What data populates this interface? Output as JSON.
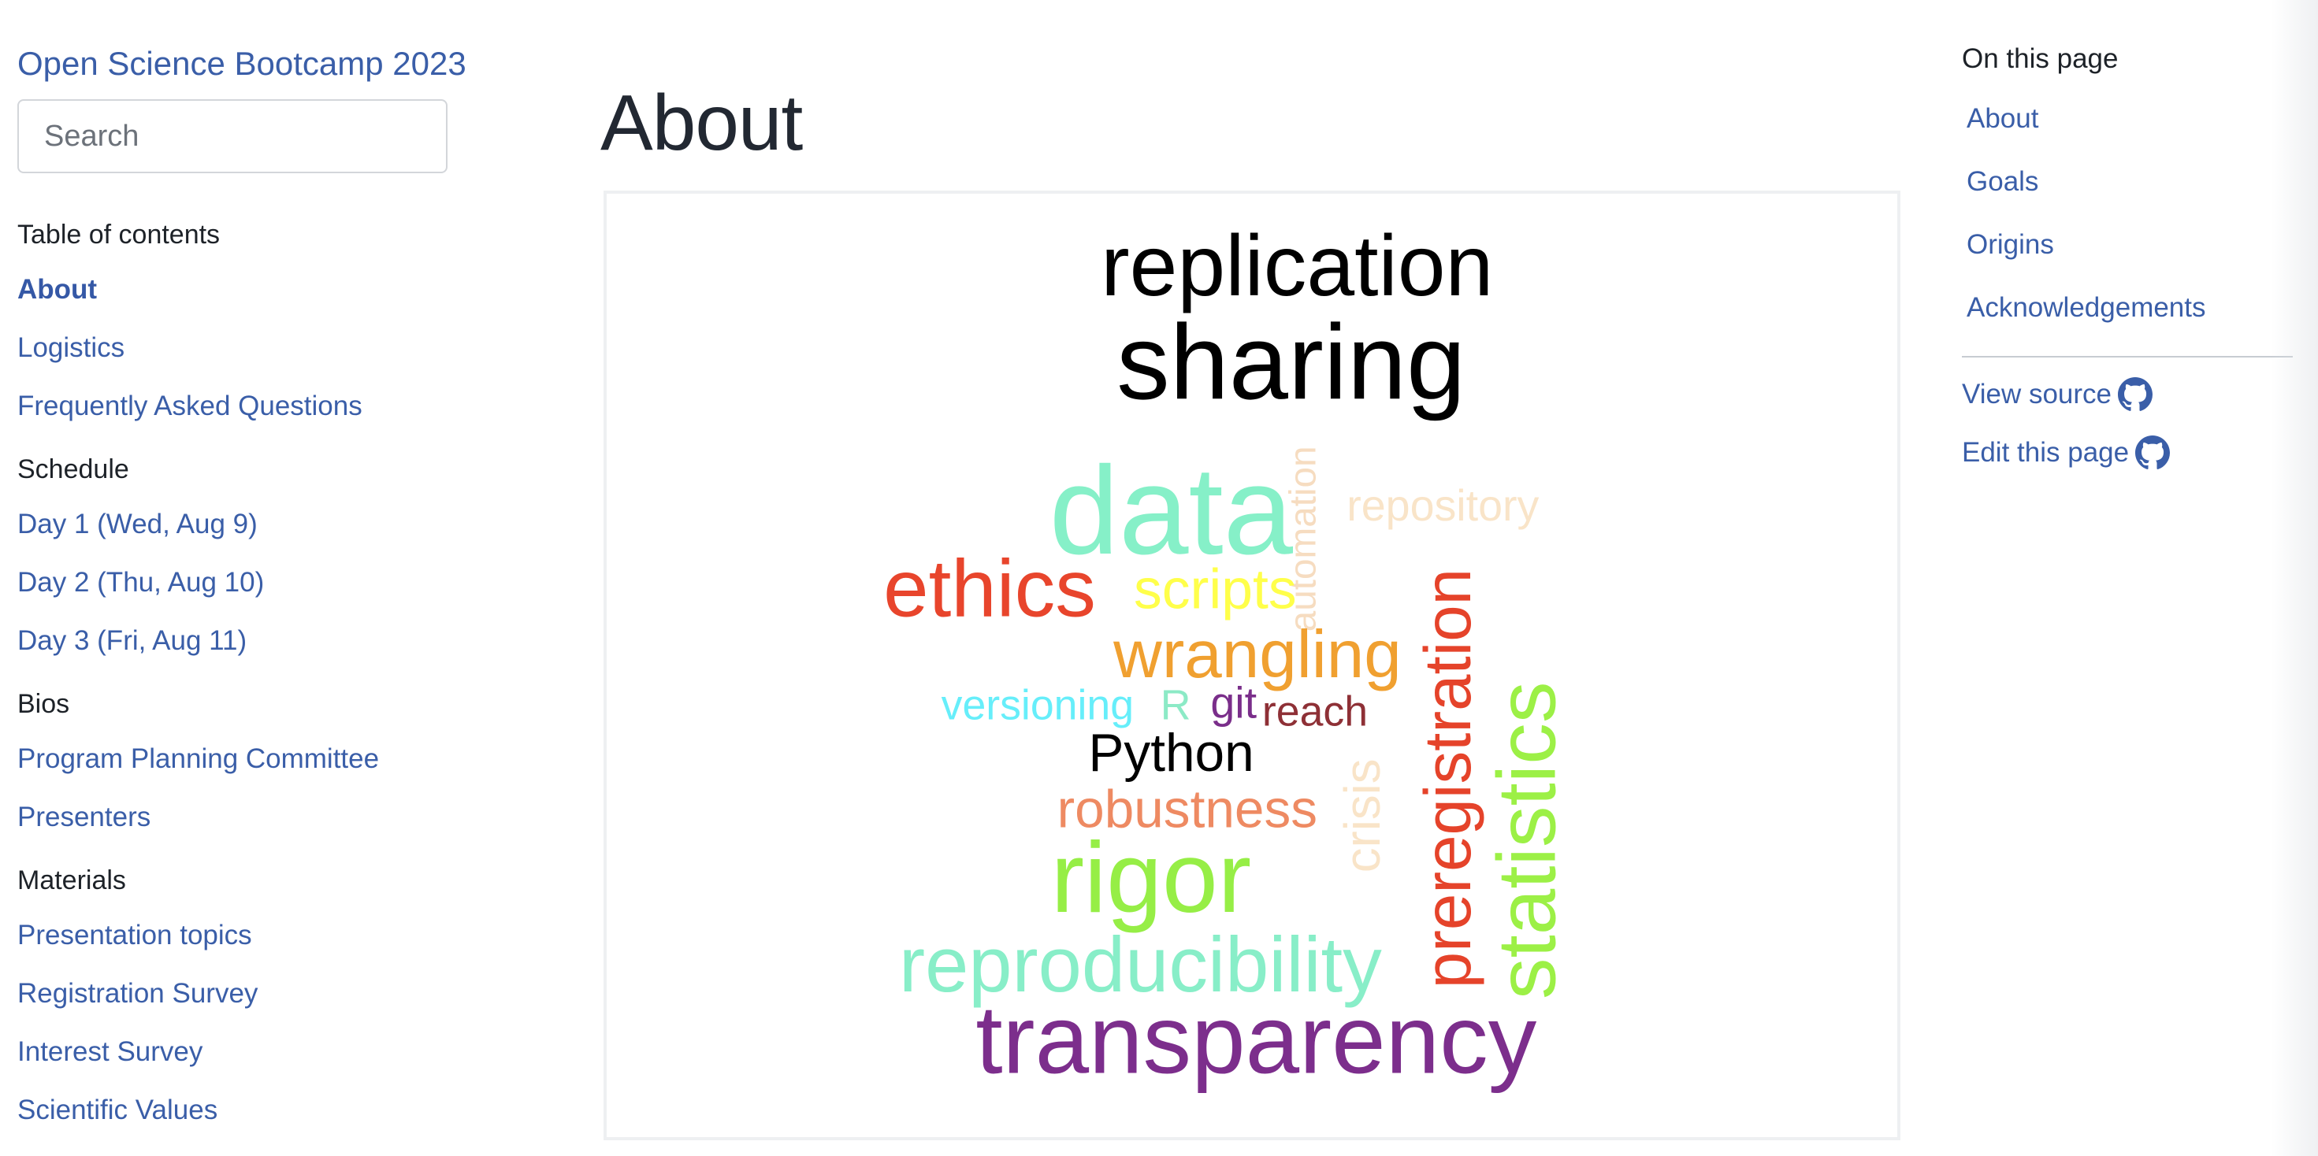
{
  "sidebar": {
    "site_title": "Open Science Bootcamp 2023",
    "search_placeholder": "Search",
    "toc_caption": "Table of contents",
    "top_items": [
      {
        "label": "About"
      },
      {
        "label": "Logistics"
      },
      {
        "label": "Frequently Asked Questions"
      }
    ],
    "schedule": {
      "heading": "Schedule",
      "items": [
        {
          "label": "Day 1 (Wed, Aug 9)"
        },
        {
          "label": "Day 2 (Thu, Aug 10)"
        },
        {
          "label": "Day 3 (Fri, Aug 11)"
        }
      ]
    },
    "bios": {
      "heading": "Bios",
      "items": [
        {
          "label": "Program Planning Committee"
        },
        {
          "label": "Presenters"
        }
      ]
    },
    "materials": {
      "heading": "Materials",
      "items": [
        {
          "label": "Presentation topics"
        },
        {
          "label": "Registration Survey"
        },
        {
          "label": "Interest Survey"
        },
        {
          "label": "Scientific Values"
        }
      ]
    }
  },
  "main": {
    "page_title": "About",
    "wordcloud": {
      "words": [
        {
          "text": "replication",
          "color": "#000000"
        },
        {
          "text": "sharing",
          "color": "#000000"
        },
        {
          "text": "data",
          "color": "#86f0c8"
        },
        {
          "text": "automation",
          "color": "#f6dcc0"
        },
        {
          "text": "repository",
          "color": "#f9e4c8"
        },
        {
          "text": "ethics",
          "color": "#e8452c"
        },
        {
          "text": "scripts",
          "color": "#ffff4a"
        },
        {
          "text": "wrangling",
          "color": "#f0a030"
        },
        {
          "text": "preregistration",
          "color": "#e5432a"
        },
        {
          "text": "statistics",
          "color": "#9cf046"
        },
        {
          "text": "versioning",
          "color": "#66eefa"
        },
        {
          "text": "R",
          "color": "#8ceac6"
        },
        {
          "text": "git",
          "color": "#7a2e8a"
        },
        {
          "text": "reach",
          "color": "#8e3036"
        },
        {
          "text": "Python",
          "color": "#000000"
        },
        {
          "text": "crisis",
          "color": "#f9e4c8"
        },
        {
          "text": "robustness",
          "color": "#ee8a62"
        },
        {
          "text": "rigor",
          "color": "#96ee46"
        },
        {
          "text": "reproducibility",
          "color": "#88eec8"
        },
        {
          "text": "transparency",
          "color": "#7c2e8c"
        }
      ]
    }
  },
  "right_toc": {
    "title": "On this page",
    "links": [
      {
        "label": "About"
      },
      {
        "label": "Goals"
      },
      {
        "label": "Origins"
      },
      {
        "label": "Acknowledgements"
      }
    ],
    "view_source": "View source",
    "edit_page": "Edit this page"
  },
  "icons": {
    "source_icon": "github-icon",
    "edit_icon": "github-icon"
  },
  "colors": {
    "link": "#3a5ea8",
    "text": "#222832"
  }
}
